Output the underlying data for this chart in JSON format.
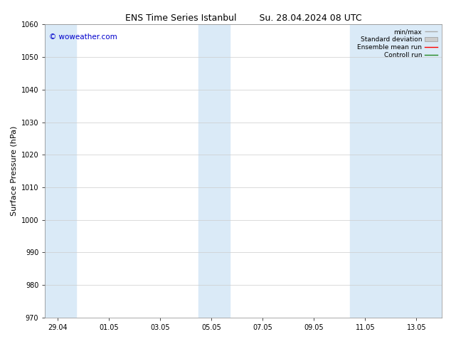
{
  "title": "ENS Time Series Istanbul        Su. 28.04.2024 08 UTC",
  "ylabel": "Surface Pressure (hPa)",
  "ylim": [
    970,
    1060
  ],
  "yticks": [
    970,
    980,
    990,
    1000,
    1010,
    1020,
    1030,
    1040,
    1050,
    1060
  ],
  "xtick_labels": [
    "29.04",
    "01.05",
    "03.05",
    "05.05",
    "07.05",
    "09.05",
    "11.05",
    "13.05"
  ],
  "xtick_positions": [
    0,
    2,
    4,
    6,
    8,
    10,
    12,
    14
  ],
  "xlim": [
    -0.5,
    15.0
  ],
  "background_color": "#ffffff",
  "plot_bg_color": "#ffffff",
  "shaded_regions": [
    {
      "x_start": -0.5,
      "x_end": 0.7,
      "color": "#daeaf7"
    },
    {
      "x_start": 5.5,
      "x_end": 6.7,
      "color": "#daeaf7"
    },
    {
      "x_start": 11.4,
      "x_end": 15.0,
      "color": "#daeaf7"
    }
  ],
  "watermark_text": "© woweather.com",
  "watermark_color": "#0000cc",
  "legend_entries": [
    {
      "label": "min/max",
      "color": "#aaaaaa",
      "linestyle": "-",
      "linewidth": 1
    },
    {
      "label": "Standard deviation",
      "color": "#cccccc",
      "linestyle": "-",
      "linewidth": 6
    },
    {
      "label": "Ensemble mean run",
      "color": "#ff0000",
      "linestyle": "-",
      "linewidth": 1
    },
    {
      "label": "Controll run",
      "color": "#228822",
      "linestyle": "-",
      "linewidth": 1
    }
  ],
  "grid_color": "#cccccc",
  "title_fontsize": 9,
  "ylabel_fontsize": 8,
  "tick_fontsize": 7,
  "legend_fontsize": 6.5,
  "watermark_fontsize": 7.5
}
